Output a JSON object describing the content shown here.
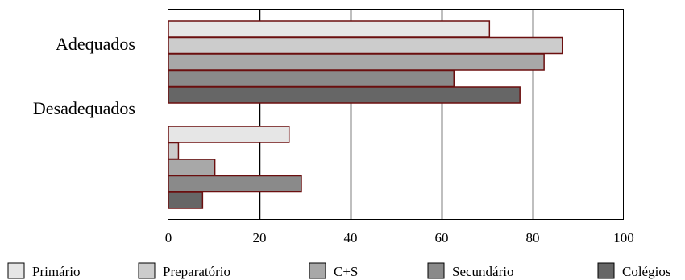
{
  "chart_data": {
    "type": "bar",
    "orientation": "horizontal",
    "categories": [
      "Adequados",
      "Desadequados"
    ],
    "series": [
      {
        "name": "Primário",
        "values": [
          70.5,
          26.5
        ],
        "color": "#e6e6e6"
      },
      {
        "name": "Preparatório",
        "values": [
          86.5,
          2.2
        ],
        "color": "#cccccc"
      },
      {
        "name": "C+S",
        "values": [
          82.5,
          10.2
        ],
        "color": "#a8a8a8"
      },
      {
        "name": "Secundário",
        "values": [
          62.7,
          29.2
        ],
        "color": "#8a8a8a"
      },
      {
        "name": "Colégios",
        "values": [
          77.2,
          7.5
        ],
        "color": "#666666"
      }
    ],
    "xlim": [
      0,
      100
    ],
    "xticks": [
      "0",
      "20",
      "40",
      "60",
      "80",
      "100"
    ],
    "grid": "vertical",
    "legend_position": "bottom",
    "bar_edge_color": "#6b0f0f"
  }
}
